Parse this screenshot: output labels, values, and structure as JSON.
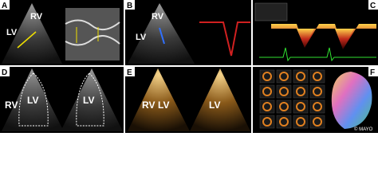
{
  "panels": [
    {
      "letter": "A",
      "labels": [
        "RV",
        "LV"
      ]
    },
    {
      "letter": "B",
      "labels": [
        "RV",
        "LV"
      ]
    },
    {
      "letter": "C",
      "labels": []
    },
    {
      "letter": "D",
      "labels": [
        "RV",
        "LV",
        "LV"
      ]
    },
    {
      "letter": "E",
      "labels": [
        "RV",
        "LV",
        "LV"
      ]
    },
    {
      "letter": "F",
      "labels": [],
      "credit": "© MAYO"
    }
  ]
}
